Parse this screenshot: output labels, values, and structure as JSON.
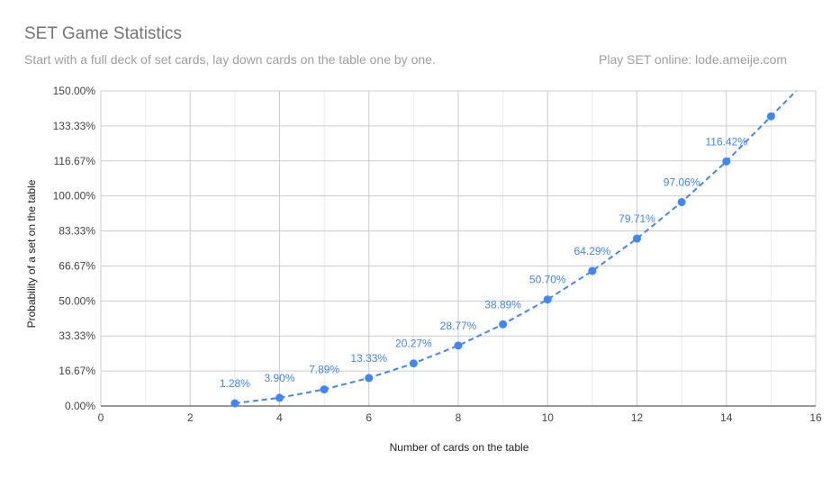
{
  "header": {
    "title": "SET Game Statistics",
    "subtitle": "Start with a full deck of set cards, lay down cards on the table one by one.",
    "subtitle_right": "Play SET online: lode.ameije.com"
  },
  "colors": {
    "series": "#4285f4",
    "grid_major": "#cccccc",
    "grid_minor": "#ebebeb"
  },
  "chart_data": {
    "type": "scatter",
    "title": "SET Game Statistics",
    "xlabel": "Number of cards on the table",
    "ylabel": "Probability of a set on the table",
    "xlim": [
      0,
      16
    ],
    "ylim": [
      0,
      150
    ],
    "x_ticks": [
      "0",
      "2",
      "4",
      "6",
      "8",
      "10",
      "12",
      "14",
      "16"
    ],
    "y_ticks": [
      "0.00%",
      "16.67%",
      "33.33%",
      "50.00%",
      "66.67%",
      "83.33%",
      "100.00%",
      "116.67%",
      "133.33%",
      "150.00%"
    ],
    "grid": true,
    "legend": "none",
    "trendline": "dashed",
    "series": [
      {
        "x": [
          3,
          4,
          5,
          6,
          7,
          8,
          9,
          10,
          11,
          12,
          13,
          14,
          15
        ],
        "y": [
          1.28,
          3.9,
          7.89,
          13.33,
          20.27,
          28.77,
          38.89,
          50.7,
          64.29,
          79.71,
          97.06,
          116.42,
          137.9
        ],
        "labels": [
          "1.28%",
          "3.90%",
          "7.89%",
          "13.33%",
          "20.27%",
          "28.77%",
          "38.89%",
          "50.70%",
          "64.29%",
          "79.71%",
          "97.06%",
          "116.42%",
          ""
        ]
      }
    ]
  }
}
